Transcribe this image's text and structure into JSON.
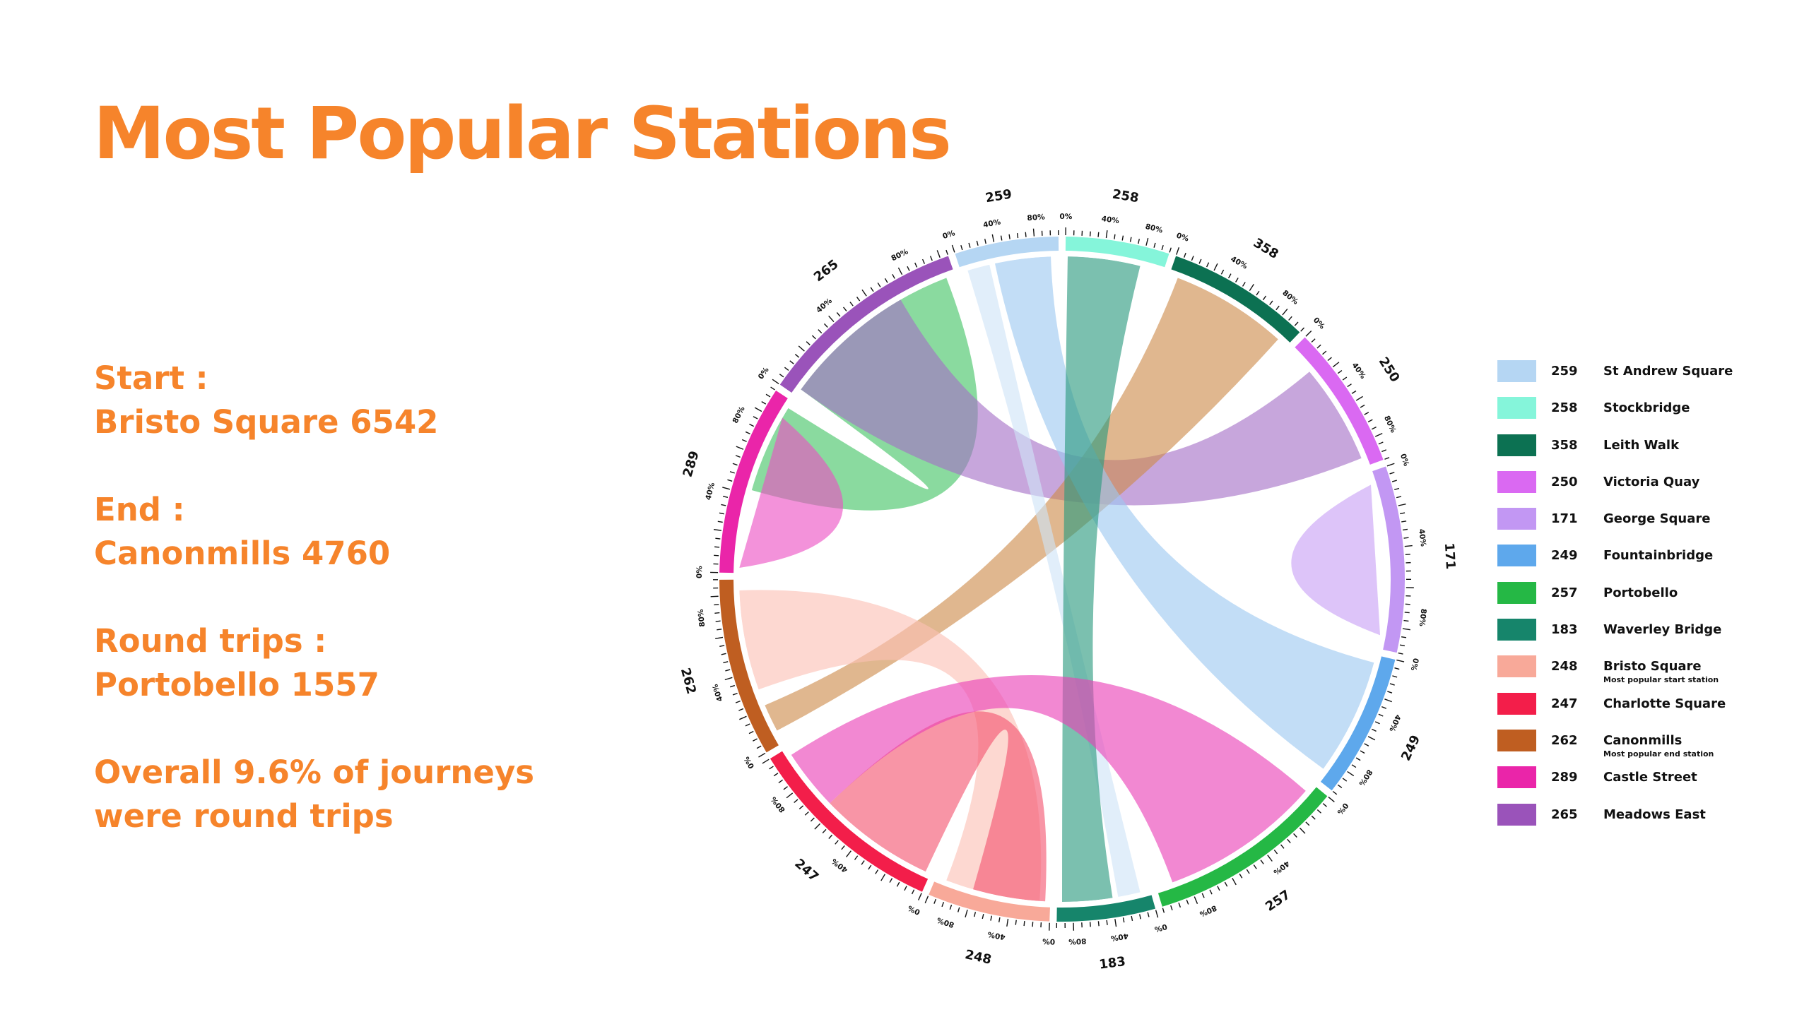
{
  "title": "Most Popular Stations",
  "stats": {
    "start_label": "Start :",
    "start_value": "Bristo Square 6542",
    "end_label": "End :",
    "end_value": "Canonmills 4760",
    "round_label": "Round trips :",
    "round_value": "Portobello 1557",
    "overall_line1": "Overall 9.6% of journeys",
    "overall_line2": "were round trips"
  },
  "legend": [
    {
      "count": "259",
      "name": "St Andrew Square",
      "color": "#b5d6f3",
      "note": ""
    },
    {
      "count": "258",
      "name": "Stockbridge",
      "color": "#85f5da",
      "note": ""
    },
    {
      "count": "358",
      "name": "Leith Walk",
      "color": "#0c7152",
      "note": ""
    },
    {
      "count": "250",
      "name": "Victoria Quay",
      "color": "#da69f2",
      "note": ""
    },
    {
      "count": "171",
      "name": "George Square",
      "color": "#c297f3",
      "note": ""
    },
    {
      "count": "249",
      "name": "Fountainbridge",
      "color": "#5ea8ec",
      "note": ""
    },
    {
      "count": "257",
      "name": "Portobello",
      "color": "#25b845",
      "note": ""
    },
    {
      "count": "183",
      "name": "Waverley Bridge",
      "color": "#16856b",
      "note": ""
    },
    {
      "count": "248",
      "name": "Bristo Square",
      "color": "#f8a999",
      "note": "Most popular start station"
    },
    {
      "count": "247",
      "name": "Charlotte Square",
      "color": "#f31e4a",
      "note": ""
    },
    {
      "count": "262",
      "name": "Canonmills",
      "color": "#bf5e21",
      "note": "Most popular end station"
    },
    {
      "count": "289",
      "name": "Castle Street",
      "color": "#ea25a9",
      "note": ""
    },
    {
      "count": "265",
      "name": "Meadows East",
      "color": "#9a53ba",
      "note": ""
    }
  ],
  "chart_data": {
    "type": "chord",
    "title": "Most Popular Stations",
    "tick_labels": [
      "0%",
      "40%",
      "80%"
    ],
    "stations": [
      {
        "label": "259",
        "name": "St Andrew Square",
        "color": "#b5d6f3"
      },
      {
        "label": "258",
        "name": "Stockbridge",
        "color": "#85f5da"
      },
      {
        "label": "358",
        "name": "Leith Walk",
        "color": "#0c7152"
      },
      {
        "label": "250",
        "name": "Victoria Quay",
        "color": "#da69f2"
      },
      {
        "label": "171",
        "name": "George Square",
        "color": "#c297f3"
      },
      {
        "label": "249",
        "name": "Fountainbridge",
        "color": "#5ea8ec"
      },
      {
        "label": "257",
        "name": "Portobello",
        "color": "#25b845"
      },
      {
        "label": "183",
        "name": "Waverley Bridge",
        "color": "#16856b"
      },
      {
        "label": "248",
        "name": "Bristo Square",
        "color": "#f8a999"
      },
      {
        "label": "247",
        "name": "Charlotte Square",
        "color": "#f31e4a"
      },
      {
        "label": "262",
        "name": "Canonmills",
        "color": "#bf5e21"
      },
      {
        "label": "289",
        "name": "Castle Street",
        "color": "#ea25a9"
      },
      {
        "label": "265",
        "name": "Meadows East",
        "color": "#9a53ba"
      }
    ],
    "chords": [
      {
        "source": "St Andrew Square",
        "target": "Fountainbridge",
        "color": "#9cc8f0"
      },
      {
        "source": "St Andrew Square",
        "target": "Waverley Bridge",
        "color": "#cfe4f7"
      },
      {
        "source": "Stockbridge",
        "target": "Waverley Bridge",
        "color": "#2a9a7e"
      },
      {
        "source": "Leith Walk",
        "target": "Canonmills",
        "color": "#cd8a4a"
      },
      {
        "source": "Victoria Quay",
        "target": "Meadows East",
        "color": "#a56fc6"
      },
      {
        "source": "George Square",
        "target": "George Square",
        "color": "#c8a0f5"
      },
      {
        "source": "Portobello",
        "target": "Charlotte Square",
        "color": "#42c364"
      },
      {
        "source": "Waverley Bridge",
        "target": "Charlotte Square",
        "color": "#f3546f"
      },
      {
        "source": "Bristo Square",
        "target": "Canonmills",
        "color": "#fbc0b5"
      },
      {
        "source": "Castle Street",
        "target": "Castle Street",
        "color": "#ec4fc3"
      },
      {
        "source": "Meadows East",
        "target": "Meadows East",
        "color": "#ea3fb6"
      }
    ]
  }
}
